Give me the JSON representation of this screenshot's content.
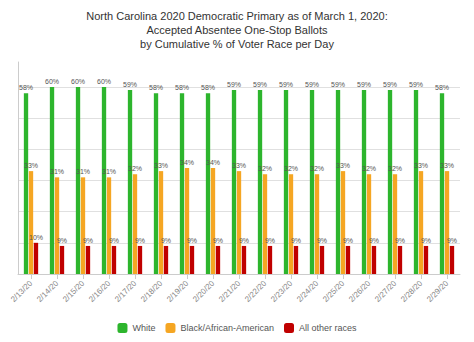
{
  "chart_data": {
    "type": "bar",
    "title": "North Carolina 2020 Democratic Primary as of March 1, 2020:\nAccepted Absentee One-Stop Ballots\nby Cumulative % of Voter Race per Day",
    "categories": [
      "2/13/20",
      "2/14/20",
      "2/15/20",
      "2/16/20",
      "2/17/20",
      "2/18/20",
      "2/19/20",
      "2/20/20",
      "2/21/20",
      "2/22/20",
      "2/23/20",
      "2/24/20",
      "2/25/20",
      "2/26/20",
      "2/27/20",
      "2/28/20",
      "2/29/20"
    ],
    "series": [
      {
        "name": "White",
        "color": "#2db52d",
        "values": [
          58,
          60,
          60,
          60,
          59,
          58,
          58,
          58,
          59,
          59,
          59,
          59,
          59,
          59,
          59,
          59,
          58
        ],
        "value_labels": [
          "58%",
          "60%",
          "60%",
          "60%",
          "59%",
          "58%",
          "58%",
          "58%",
          "59%",
          "59%",
          "59%",
          "59%",
          "59%",
          "59%",
          "59%",
          "59%",
          "58%"
        ]
      },
      {
        "name": "Black/African-American",
        "color": "#f5a623",
        "values": [
          33,
          31,
          31,
          31,
          32,
          33,
          34,
          34,
          33,
          32,
          32,
          32,
          33,
          32,
          32,
          33,
          33
        ],
        "value_labels": [
          "33%",
          "31%",
          "31%",
          "31%",
          "32%",
          "33%",
          "34%",
          "34%",
          "33%",
          "32%",
          "32%",
          "32%",
          "33%",
          "32%",
          "32%",
          "33%",
          "33%"
        ]
      },
      {
        "name": "All other races",
        "color": "#c00000",
        "values": [
          10,
          9,
          9,
          9,
          9,
          9,
          9,
          9,
          9,
          9,
          9,
          9,
          9,
          9,
          9,
          9,
          9
        ],
        "value_labels": [
          "10%",
          "9%",
          "9%",
          "9%",
          "9%",
          "9%",
          "9%",
          "9%",
          "9%",
          "9%",
          "9%",
          "9%",
          "9%",
          "9%",
          "9%",
          "9%",
          "9%"
        ]
      }
    ],
    "ylim": [
      0,
      68
    ],
    "yticks": [
      0,
      10,
      20,
      30,
      40,
      50,
      60
    ],
    "grid": true,
    "legend": "bottom",
    "data_labels": true,
    "tick_labels": "x"
  }
}
